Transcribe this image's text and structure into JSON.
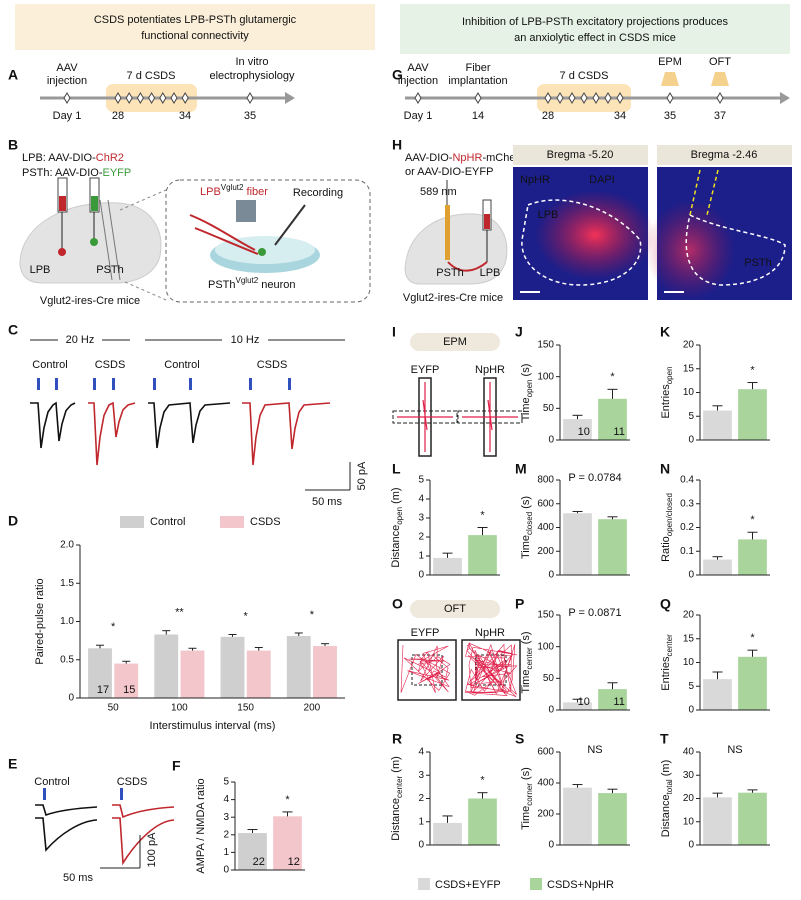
{
  "headers": {
    "left": [
      "CSDS potentiates LPB-PSTh glutamergic",
      "functional connectivity"
    ],
    "right": [
      "Inhibition of LPB-PSTh excitatory projections produces",
      "an anxiolytic effect in CSDS mice"
    ]
  },
  "letters": [
    "A",
    "B",
    "C",
    "E",
    "G",
    "H",
    "I",
    "O"
  ],
  "panel_a": {
    "events": [
      [
        "AAV",
        "injection"
      ],
      [
        "7 d CSDS"
      ],
      [
        "In vitro",
        "electrophysiology"
      ]
    ],
    "days": [
      "Day 1",
      "28",
      "34",
      "35"
    ]
  },
  "panel_b": {
    "vectors": [
      [
        "LPB: AAV-DIO-",
        "ChR2"
      ],
      [
        "PSTh: AAV-DIO-",
        "EYFP"
      ]
    ],
    "regions": [
      "LPB",
      "PSTh"
    ],
    "mouse": "Vglut2-ires-Cre mice",
    "fiber": [
      "LPB",
      "Vglut2",
      " fiber"
    ],
    "recording": "Recording",
    "neuron": [
      "PSTh",
      "Vglut2",
      " neuron"
    ]
  },
  "panel_c": {
    "frequencies": [
      "20 Hz",
      "10 Hz"
    ],
    "groups": [
      "Control",
      "CSDS",
      "Control",
      "CSDS"
    ],
    "scale": [
      "50 ms",
      "50 pA"
    ]
  },
  "panel_e": {
    "groups": [
      "Control",
      "CSDS"
    ],
    "scale": [
      "50 ms",
      "100 pA"
    ]
  },
  "panel_g": {
    "events": [
      [
        "AAV",
        "injection"
      ],
      [
        "Fiber",
        "implantation"
      ],
      [
        "7 d CSDS"
      ],
      [
        "EPM"
      ],
      [
        "OFT"
      ]
    ],
    "days": [
      "Day 1",
      "14",
      "28",
      "34",
      "35",
      "37"
    ]
  },
  "panel_h": {
    "vectors": [
      [
        "AAV-DIO-",
        "NpHR",
        "-mCherry"
      ],
      [
        "or AAV-DIO-EYFP"
      ]
    ],
    "laser": "589 nm",
    "regions": [
      "PSTh",
      "LPB"
    ],
    "mouse": "Vglut2-ires-Cre mice",
    "images": [
      "Bregma -5.20",
      "Bregma -2.46"
    ],
    "stains": [
      "NpHR",
      "DAPI"
    ],
    "image_regions": [
      "LPB",
      "PSTh"
    ]
  },
  "panel_i": {
    "test": "EPM",
    "groups": [
      "EYFP",
      "NpHR"
    ]
  },
  "panel_o": {
    "test": "OFT",
    "groups": [
      "EYFP",
      "NpHR"
    ]
  },
  "legend": [
    {
      "name": "CSDS+EYFP",
      "color": "#d9d9d9"
    },
    {
      "name": "CSDS+NpHR",
      "color": "#a9d59c"
    }
  ],
  "chart_data": [
    {
      "type": "bar",
      "panel": "D",
      "ylabel": [
        "Paired-pulse ratio"
      ],
      "xlabel": "Interstimulus interval (ms)",
      "categories": [
        "50",
        "100",
        "150",
        "200"
      ],
      "series": [
        {
          "name": "Control",
          "color": "#cfcfcf",
          "values": [
            0.65,
            0.83,
            0.8,
            0.81
          ],
          "errors": [
            0.04,
            0.05,
            0.03,
            0.04
          ]
        },
        {
          "name": "CSDS",
          "color": "#f2c6ca",
          "values": [
            0.45,
            0.62,
            0.62,
            0.68
          ],
          "errors": [
            0.03,
            0.03,
            0.04,
            0.03
          ]
        }
      ],
      "annotations": [
        "*",
        "**",
        "*",
        "*"
      ],
      "n_labels": [
        17,
        15
      ],
      "ylim": [
        0,
        2
      ],
      "yticks": [
        0,
        0.5,
        {
          "value": 1,
          "label": "1.0"
        },
        1.5,
        {
          "value": 2,
          "label": "2.0"
        }
      ]
    },
    {
      "type": "bar",
      "panel": "F",
      "ylabel": [
        "AMPA / NMDA ratio"
      ],
      "values": [
        2.1,
        3.05
      ],
      "errors": [
        0.2,
        0.25
      ],
      "colors": [
        "#cfcfcf",
        "#f2c6ca"
      ],
      "annotation": "*",
      "n_labels": [
        22,
        12
      ],
      "ylim": [
        0,
        5
      ],
      "yticks": [
        0,
        1,
        2,
        3,
        4,
        5
      ]
    },
    {
      "type": "bar",
      "panel": "J",
      "ylabel": [
        "Time",
        "open",
        " (s)"
      ],
      "values": [
        33,
        65
      ],
      "errors": [
        6,
        15
      ],
      "colors": [
        "#d9d9d9",
        "#a9d59c"
      ],
      "annotation": "*",
      "n_labels": [
        10,
        11
      ],
      "ylim": [
        0,
        150
      ],
      "yticks": [
        0,
        50,
        100,
        150
      ]
    },
    {
      "type": "bar",
      "panel": "K",
      "ylabel": [
        "Entries",
        "open"
      ],
      "values": [
        6.2,
        10.7
      ],
      "errors": [
        1.0,
        1.4
      ],
      "colors": [
        "#d9d9d9",
        "#a9d59c"
      ],
      "annotation": "*",
      "ylim": [
        0,
        20
      ],
      "yticks": [
        0,
        5,
        10,
        15,
        20
      ]
    },
    {
      "type": "bar",
      "panel": "L",
      "ylabel": [
        "Distance",
        "open",
        " (m)"
      ],
      "values": [
        0.9,
        2.1
      ],
      "errors": [
        0.25,
        0.4
      ],
      "colors": [
        "#d9d9d9",
        "#a9d59c"
      ],
      "annotation": "*",
      "ylim": [
        0,
        5
      ],
      "yticks": [
        0,
        1,
        2,
        3,
        4,
        5
      ]
    },
    {
      "type": "bar",
      "panel": "M",
      "ylabel": [
        "Time",
        "closed",
        " (s)"
      ],
      "values": [
        520,
        470
      ],
      "errors": [
        15,
        20
      ],
      "colors": [
        "#d9d9d9",
        "#a9d59c"
      ],
      "annotation": "P = 0.0784",
      "ylim": [
        0,
        800
      ],
      "yticks": [
        0,
        200,
        400,
        600,
        800
      ]
    },
    {
      "type": "bar",
      "panel": "N",
      "ylabel": [
        "Ratio",
        "open/closed"
      ],
      "values": [
        0.065,
        0.15
      ],
      "errors": [
        0.012,
        0.03
      ],
      "colors": [
        "#d9d9d9",
        "#a9d59c"
      ],
      "annotation": "*",
      "ylim": [
        0,
        0.4
      ],
      "yticks": [
        0,
        0.1,
        0.2,
        0.3,
        0.4
      ]
    },
    {
      "type": "bar",
      "panel": "P",
      "ylabel": [
        "Time",
        "center",
        " (s)"
      ],
      "values": [
        12,
        33
      ],
      "errors": [
        5,
        10
      ],
      "colors": [
        "#d9d9d9",
        "#a9d59c"
      ],
      "annotation": "P = 0.0871",
      "n_labels": [
        10,
        11
      ],
      "ylim": [
        0,
        150
      ],
      "yticks": [
        0,
        50,
        100,
        150
      ]
    },
    {
      "type": "bar",
      "panel": "Q",
      "ylabel": [
        "Entries",
        "center"
      ],
      "values": [
        6.5,
        11.2
      ],
      "errors": [
        1.5,
        1.4
      ],
      "colors": [
        "#d9d9d9",
        "#a9d59c"
      ],
      "annotation": "*",
      "ylim": [
        0,
        20
      ],
      "yticks": [
        0,
        5,
        10,
        15,
        20
      ]
    },
    {
      "type": "bar",
      "panel": "R",
      "ylabel": [
        "Distance",
        "center",
        " (m)"
      ],
      "values": [
        0.95,
        2.0
      ],
      "errors": [
        0.3,
        0.25
      ],
      "colors": [
        "#d9d9d9",
        "#a9d59c"
      ],
      "annotation": "*",
      "ylim": [
        0,
        4
      ],
      "yticks": [
        0,
        1,
        2,
        3,
        4
      ]
    },
    {
      "type": "bar",
      "panel": "S",
      "ylabel": [
        "Time",
        "corner",
        " (s)"
      ],
      "values": [
        370,
        335
      ],
      "errors": [
        20,
        25
      ],
      "colors": [
        "#d9d9d9",
        "#a9d59c"
      ],
      "annotation": "NS",
      "ylim": [
        0,
        600
      ],
      "yticks": [
        0,
        200,
        400,
        600
      ]
    },
    {
      "type": "bar",
      "panel": "T",
      "ylabel": [
        "Distance",
        "total",
        " (m)"
      ],
      "values": [
        20.5,
        22.5
      ],
      "errors": [
        1.8,
        1.2
      ],
      "colors": [
        "#d9d9d9",
        "#a9d59c"
      ],
      "annotation": "NS",
      "ylim": [
        0,
        40
      ],
      "yticks": [
        0,
        10,
        20,
        30,
        40
      ]
    }
  ]
}
